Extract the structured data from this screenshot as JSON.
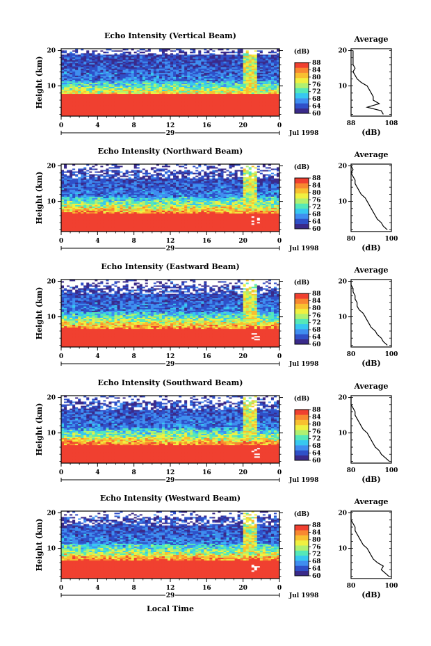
{
  "chart_data": {
    "type": "heatmap",
    "panels": [
      {
        "title": "Echo Intensity (Vertical Beam)",
        "ylabel": "Height (km)",
        "yticks": [
          "20",
          "10"
        ],
        "xticks": [
          "0",
          "4",
          "8",
          "12",
          "16",
          "20",
          "0"
        ],
        "date_label": "29",
        "month_label": "Jul 1998",
        "colorbar_title": "(dB)",
        "colorbar_ticks": [
          "88",
          "84",
          "80",
          "76",
          "72",
          "68",
          "64",
          "60"
        ],
        "avg_title": "Average",
        "avg_xticks": [
          "88",
          "108"
        ],
        "avg_xlabel": "(dB)",
        "avg_yticks": [
          "20",
          "10"
        ],
        "avg_profile": [
          [
            2,
            104
          ],
          [
            3,
            103
          ],
          [
            4,
            96
          ],
          [
            5,
            102
          ],
          [
            6,
            99
          ],
          [
            7,
            99
          ],
          [
            8,
            98
          ],
          [
            9,
            97
          ],
          [
            10,
            96
          ],
          [
            11,
            93
          ],
          [
            12,
            91
          ],
          [
            13,
            90
          ],
          [
            14,
            89
          ],
          [
            15,
            90
          ],
          [
            16,
            89
          ],
          [
            17,
            89
          ],
          [
            18,
            89
          ],
          [
            19,
            89
          ],
          [
            20,
            89
          ]
        ]
      },
      {
        "title": "Echo Intensity (Northward Beam)",
        "ylabel": "Height (km)",
        "yticks": [
          "20",
          "10"
        ],
        "xticks": [
          "0",
          "4",
          "8",
          "12",
          "16",
          "20",
          "0"
        ],
        "date_label": "29",
        "month_label": "Jul 1998",
        "colorbar_title": "(dB)",
        "colorbar_ticks": [
          "88",
          "84",
          "80",
          "76",
          "72",
          "68",
          "64",
          "60"
        ],
        "avg_title": "Average",
        "avg_xticks": [
          "80",
          "100"
        ],
        "avg_xlabel": "(dB)",
        "avg_yticks": [
          "20",
          "10"
        ],
        "avg_profile": [
          [
            2,
            98
          ],
          [
            3,
            96
          ],
          [
            4,
            95
          ],
          [
            5,
            93
          ],
          [
            6,
            92
          ],
          [
            7,
            91
          ],
          [
            8,
            90
          ],
          [
            9,
            89
          ],
          [
            10,
            88
          ],
          [
            11,
            87
          ],
          [
            12,
            85
          ],
          [
            13,
            84
          ],
          [
            14,
            83
          ],
          [
            15,
            82
          ],
          [
            16,
            82
          ],
          [
            17,
            81
          ],
          [
            18,
            80
          ],
          [
            19,
            81
          ],
          [
            20,
            80
          ]
        ]
      },
      {
        "title": "Echo Intensity (Eastward Beam)",
        "ylabel": "Height (km)",
        "yticks": [
          "20",
          "10"
        ],
        "xticks": [
          "0",
          "4",
          "8",
          "12",
          "16",
          "20",
          "0"
        ],
        "date_label": "29",
        "month_label": "Jul 1998",
        "colorbar_title": "(dB)",
        "colorbar_ticks": [
          "88",
          "84",
          "80",
          "76",
          "72",
          "68",
          "64",
          "60"
        ],
        "avg_title": "Average",
        "avg_xticks": [
          "80",
          "100"
        ],
        "avg_xlabel": "(dB)",
        "avg_yticks": [
          "20",
          "10"
        ],
        "avg_profile": [
          [
            2,
            98
          ],
          [
            3,
            96
          ],
          [
            4,
            95
          ],
          [
            5,
            93
          ],
          [
            6,
            92
          ],
          [
            7,
            90
          ],
          [
            8,
            89
          ],
          [
            9,
            88
          ],
          [
            10,
            87
          ],
          [
            11,
            86
          ],
          [
            12,
            84
          ],
          [
            13,
            83
          ],
          [
            14,
            83
          ],
          [
            15,
            82
          ],
          [
            16,
            82
          ],
          [
            17,
            81
          ],
          [
            18,
            81
          ],
          [
            19,
            80
          ],
          [
            20,
            80
          ]
        ]
      },
      {
        "title": "Echo Intensity (Southward Beam)",
        "ylabel": "Height (km)",
        "yticks": [
          "20",
          "10"
        ],
        "xticks": [
          "0",
          "4",
          "8",
          "12",
          "16",
          "20",
          "0"
        ],
        "date_label": "29",
        "month_label": "Jul 1998",
        "colorbar_title": "(dB)",
        "colorbar_ticks": [
          "88",
          "84",
          "80",
          "76",
          "72",
          "68",
          "64",
          "60"
        ],
        "avg_title": "Average",
        "avg_xticks": [
          "80",
          "100"
        ],
        "avg_xlabel": "(dB)",
        "avg_yticks": [
          "20",
          "10"
        ],
        "avg_profile": [
          [
            2,
            99
          ],
          [
            3,
            97
          ],
          [
            4,
            95
          ],
          [
            5,
            94
          ],
          [
            6,
            92
          ],
          [
            7,
            91
          ],
          [
            8,
            90
          ],
          [
            9,
            89
          ],
          [
            10,
            88
          ],
          [
            11,
            86
          ],
          [
            12,
            85
          ],
          [
            13,
            84
          ],
          [
            14,
            83
          ],
          [
            15,
            82
          ],
          [
            16,
            82
          ],
          [
            17,
            81
          ],
          [
            18,
            80
          ],
          [
            19,
            80
          ],
          [
            20,
            80
          ]
        ]
      },
      {
        "title": "Echo Intensity (Westward Beam)",
        "ylabel": "Height (km)",
        "yticks": [
          "20",
          "10"
        ],
        "xticks": [
          "0",
          "4",
          "8",
          "12",
          "16",
          "20",
          "0"
        ],
        "date_label": "29",
        "month_label": "Jul 1998",
        "colorbar_title": "(dB)",
        "colorbar_ticks": [
          "88",
          "84",
          "80",
          "76",
          "72",
          "68",
          "64",
          "60"
        ],
        "avg_title": "Average",
        "avg_xticks": [
          "80",
          "100"
        ],
        "avg_xlabel": "(dB)",
        "avg_yticks": [
          "20",
          "10"
        ],
        "avg_profile": [
          [
            2,
            99
          ],
          [
            3,
            97
          ],
          [
            4,
            95
          ],
          [
            5,
            96
          ],
          [
            6,
            93
          ],
          [
            7,
            91
          ],
          [
            8,
            90
          ],
          [
            9,
            89
          ],
          [
            10,
            88
          ],
          [
            11,
            86
          ],
          [
            12,
            85
          ],
          [
            13,
            84
          ],
          [
            14,
            83
          ],
          [
            15,
            82
          ],
          [
            16,
            82
          ],
          [
            17,
            81
          ],
          [
            18,
            80
          ],
          [
            19,
            80
          ],
          [
            20,
            80
          ]
        ]
      }
    ],
    "xlabel": "Local Time",
    "x_range_hours": [
      0,
      24
    ],
    "y_range_km": [
      1.5,
      20.5
    ],
    "colorbar_range_db": [
      60,
      88
    ],
    "colorbar_colors": [
      "#3a2a8a",
      "#2f50c8",
      "#3f8ef0",
      "#37c8f0",
      "#55e8b8",
      "#b0f070",
      "#f0f040",
      "#f8c030",
      "#f88830",
      "#f04030"
    ]
  }
}
